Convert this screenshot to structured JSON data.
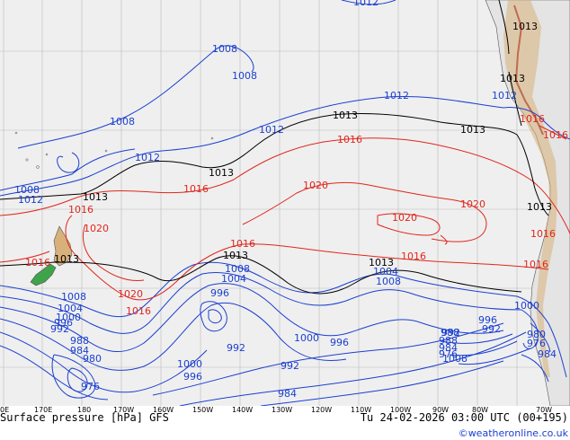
{
  "map": {
    "colors": {
      "ocean": "#efefef",
      "land": "#e4e4e4",
      "isobar_low": "#1a3fd0",
      "isobar_high": "#e0261c",
      "isobar_1013": "#000000",
      "grid": "#b9b9b9"
    },
    "longitude_labels": [
      "0E",
      "170E",
      "180",
      "170W",
      "160W",
      "150W",
      "140W",
      "130W",
      "120W",
      "110W",
      "100W",
      "90W",
      "80W",
      "70W"
    ],
    "isobar_labels": {
      "blue": [
        "1012",
        "1008",
        "1008",
        "1008",
        "1012",
        "1012",
        "1012",
        "1012",
        "1008",
        "1012",
        "1008",
        "1004",
        "1000",
        "996",
        "992",
        "988",
        "984",
        "980",
        "976",
        "1008",
        "1004",
        "996",
        "992",
        "1000",
        "996",
        "992",
        "984",
        "1000",
        "996",
        "992",
        "988",
        "984",
        "976",
        "1008",
        "1004",
        "1008",
        "1000",
        "996",
        "992",
        "988",
        "984",
        "980",
        "976"
      ],
      "red": [
        "1016",
        "1016",
        "1020",
        "1016",
        "1020",
        "1016",
        "1016",
        "1020",
        "1020",
        "1016",
        "1020",
        "1016",
        "1016",
        "1016",
        "1016",
        "1016"
      ],
      "black": [
        "1013",
        "1013",
        "1013",
        "1013",
        "1013",
        "1013",
        "1013",
        "1013",
        "1013",
        "1013"
      ]
    }
  },
  "footer": {
    "left": "Surface pressure [hPa] GFS",
    "right": "Tu 24-02-2026 03:00 UTC (00+195)",
    "credit": "©weatheronline.co.uk"
  }
}
